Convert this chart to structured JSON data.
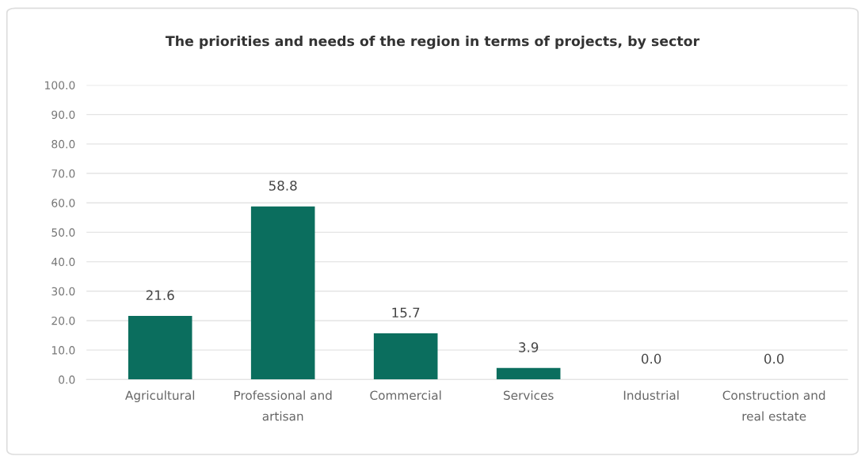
{
  "chart_data": {
    "type": "bar",
    "title": "The priorities and needs of the region in terms of projects, by sector",
    "categories": [
      "Agricultural",
      "Professional and\nartisan",
      "Commercial",
      "Services",
      "Industrial",
      "Construction and\nreal estate"
    ],
    "values": [
      21.6,
      58.8,
      15.7,
      3.9,
      0.0,
      0.0
    ],
    "value_labels": [
      "21.6",
      "58.8",
      "15.7",
      "3.9",
      "0.0",
      "0.0"
    ],
    "color": "#0b6e5e",
    "ylim": [
      0,
      100
    ],
    "yticks": [
      {
        "value": 0,
        "label": "0.0"
      },
      {
        "value": 10,
        "label": "10.0"
      },
      {
        "value": 20,
        "label": "20.0"
      },
      {
        "value": 30,
        "label": "30.0"
      },
      {
        "value": 40,
        "label": "40.0"
      },
      {
        "value": 50,
        "label": "50.0"
      },
      {
        "value": 60,
        "label": "60.0"
      },
      {
        "value": 70,
        "label": "70.0"
      },
      {
        "value": 80,
        "label": "80.0"
      },
      {
        "value": 90,
        "label": "90.0"
      },
      {
        "value": 100,
        "label": "100.0"
      }
    ],
    "grid": "y"
  }
}
